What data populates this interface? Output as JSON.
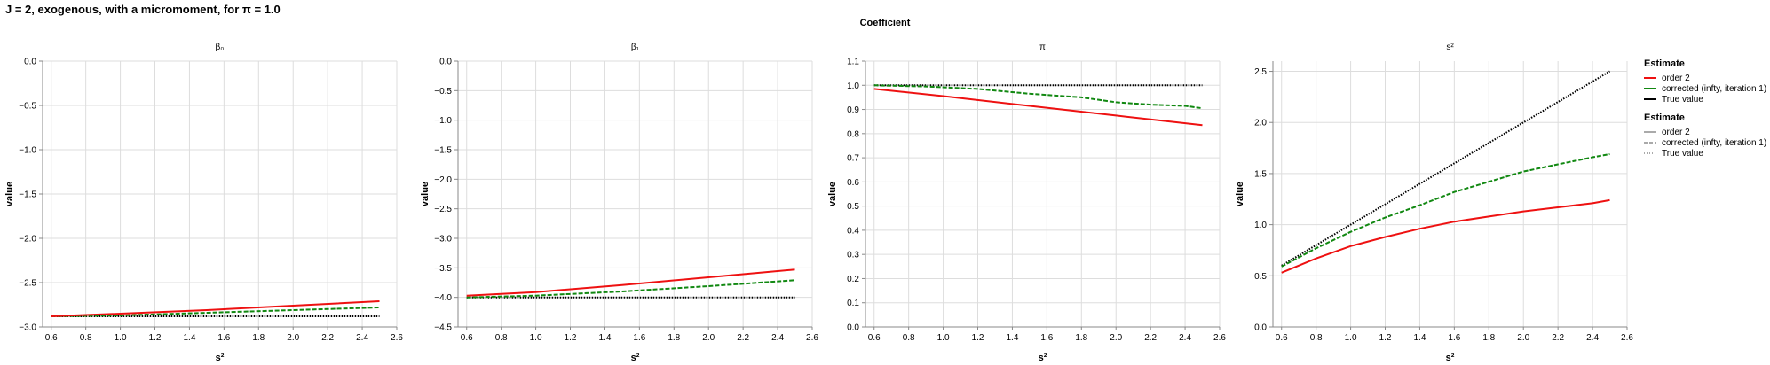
{
  "main_title": "J = 2, exogenous, with a micromoment,  for π = 1.0",
  "facet_title": "Coefficient",
  "legend": [
    {
      "title": "Estimate",
      "kind": "color",
      "items": [
        {
          "label": "order 2",
          "color": "#ee1111"
        },
        {
          "label": "corrected (infty, iteration 1)",
          "color": "#118811"
        },
        {
          "label": "True value",
          "color": "#000000"
        }
      ]
    },
    {
      "title": "Estimate",
      "kind": "dash",
      "items": [
        {
          "label": "order 2",
          "dash": "solid"
        },
        {
          "label": "corrected (infty, iteration 1)",
          "dash": "dashed"
        },
        {
          "label": "True value",
          "dash": "dotted"
        }
      ]
    }
  ],
  "colors": {
    "order2": "#ee1111",
    "corrected": "#118811",
    "true": "#000000",
    "grid": "#dddddd",
    "axis": "#888888"
  },
  "chart_data": [
    {
      "type": "line",
      "title": "β₀",
      "xlabel": "s²",
      "ylabel": "value",
      "xlim": [
        0.55,
        2.6
      ],
      "ylim": [
        -3.0,
        0.0
      ],
      "xticks": [
        0.6,
        0.8,
        1.0,
        1.2,
        1.4,
        1.6,
        1.8,
        2.0,
        2.2,
        2.4,
        2.6
      ],
      "xtick_labels": [
        "0.6",
        "0.8",
        "1.0",
        "1.2",
        "1.4",
        "1.6",
        "1.8",
        "2.0",
        "2.2",
        "2.4",
        "2.6"
      ],
      "yticks": [
        0.0,
        -0.5,
        -1.0,
        -1.5,
        -2.0,
        -2.5,
        -3.0
      ],
      "ytick_labels": [
        "0.0",
        "−0.5",
        "−1.0",
        "−1.5",
        "−2.0",
        "−2.5",
        "−3.0"
      ],
      "grid": true,
      "series": [
        {
          "name": "order 2",
          "style": "solid",
          "x": [
            0.6,
            1.0,
            1.5,
            2.0,
            2.5
          ],
          "y": [
            -2.88,
            -2.85,
            -2.81,
            -2.76,
            -2.71
          ]
        },
        {
          "name": "corrected (infty, iteration 1)",
          "style": "dashed",
          "x": [
            0.6,
            1.0,
            1.5,
            2.0,
            2.5
          ],
          "y": [
            -2.88,
            -2.87,
            -2.84,
            -2.81,
            -2.78
          ]
        },
        {
          "name": "True value",
          "style": "dotted",
          "x": [
            0.6,
            2.5
          ],
          "y": [
            -2.88,
            -2.88
          ]
        }
      ]
    },
    {
      "type": "line",
      "title": "β₁",
      "xlabel": "s²",
      "ylabel": "value",
      "xlim": [
        0.55,
        2.6
      ],
      "ylim": [
        -4.5,
        0.0
      ],
      "xticks": [
        0.6,
        0.8,
        1.0,
        1.2,
        1.4,
        1.6,
        1.8,
        2.0,
        2.2,
        2.4,
        2.6
      ],
      "xtick_labels": [
        "0.6",
        "0.8",
        "1.0",
        "1.2",
        "1.4",
        "1.6",
        "1.8",
        "2.0",
        "2.2",
        "2.4",
        "2.6"
      ],
      "yticks": [
        0.0,
        -0.5,
        -1.0,
        -1.5,
        -2.0,
        -2.5,
        -3.0,
        -3.5,
        -4.0,
        -4.5
      ],
      "ytick_labels": [
        "0.0",
        "−0.5",
        "−1.0",
        "−1.5",
        "−2.0",
        "−2.5",
        "−3.0",
        "−3.5",
        "−4.0",
        "−4.5"
      ],
      "grid": true,
      "series": [
        {
          "name": "order 2",
          "style": "solid",
          "x": [
            0.6,
            1.0,
            1.5,
            2.0,
            2.5
          ],
          "y": [
            -3.97,
            -3.91,
            -3.79,
            -3.66,
            -3.53
          ]
        },
        {
          "name": "corrected (infty, iteration 1)",
          "style": "dashed",
          "x": [
            0.6,
            1.0,
            1.5,
            2.0,
            2.5
          ],
          "y": [
            -4.0,
            -3.97,
            -3.9,
            -3.81,
            -3.71
          ]
        },
        {
          "name": "True value",
          "style": "dotted",
          "x": [
            0.6,
            2.5
          ],
          "y": [
            -4.0,
            -4.0
          ]
        }
      ]
    },
    {
      "type": "line",
      "title": "π",
      "xlabel": "s²",
      "ylabel": "value",
      "xlim": [
        0.55,
        2.6
      ],
      "ylim": [
        0.0,
        1.1
      ],
      "xticks": [
        0.6,
        0.8,
        1.0,
        1.2,
        1.4,
        1.6,
        1.8,
        2.0,
        2.2,
        2.4,
        2.6
      ],
      "xtick_labels": [
        "0.6",
        "0.8",
        "1.0",
        "1.2",
        "1.4",
        "1.6",
        "1.8",
        "2.0",
        "2.2",
        "2.4",
        "2.6"
      ],
      "yticks": [
        0.0,
        0.1,
        0.2,
        0.3,
        0.4,
        0.5,
        0.6,
        0.7,
        0.8,
        0.9,
        1.0,
        1.1
      ],
      "ytick_labels": [
        "0.0",
        "0.1",
        "0.2",
        "0.3",
        "0.4",
        "0.5",
        "0.6",
        "0.7",
        "0.8",
        "0.9",
        "1.0",
        "1.1"
      ],
      "grid": true,
      "series": [
        {
          "name": "order 2",
          "style": "solid",
          "x": [
            0.6,
            1.0,
            1.5,
            2.0,
            2.5
          ],
          "y": [
            0.985,
            0.955,
            0.915,
            0.875,
            0.835
          ]
        },
        {
          "name": "corrected (infty, iteration 1)",
          "style": "dashed",
          "x": [
            0.6,
            0.9,
            1.2,
            1.5,
            1.8,
            2.0,
            2.2,
            2.4,
            2.5
          ],
          "y": [
            1.0,
            0.995,
            0.985,
            0.965,
            0.95,
            0.93,
            0.92,
            0.915,
            0.905
          ]
        },
        {
          "name": "True value",
          "style": "dotted",
          "x": [
            0.6,
            2.5
          ],
          "y": [
            1.0,
            1.0
          ]
        }
      ]
    },
    {
      "type": "line",
      "title": "s²",
      "xlabel": "s²",
      "ylabel": "value",
      "xlim": [
        0.55,
        2.6
      ],
      "ylim": [
        0.0,
        2.6
      ],
      "xticks": [
        0.6,
        0.8,
        1.0,
        1.2,
        1.4,
        1.6,
        1.8,
        2.0,
        2.2,
        2.4,
        2.6
      ],
      "xtick_labels": [
        "0.6",
        "0.8",
        "1.0",
        "1.2",
        "1.4",
        "1.6",
        "1.8",
        "2.0",
        "2.2",
        "2.4",
        "2.6"
      ],
      "yticks": [
        0.0,
        0.5,
        1.0,
        1.5,
        2.0,
        2.5
      ],
      "ytick_labels": [
        "0.0",
        "0.5",
        "1.0",
        "1.5",
        "2.0",
        "2.5"
      ],
      "grid": true,
      "series": [
        {
          "name": "order 2",
          "style": "solid",
          "x": [
            0.6,
            0.8,
            1.0,
            1.2,
            1.4,
            1.6,
            1.8,
            2.0,
            2.2,
            2.4,
            2.5
          ],
          "y": [
            0.53,
            0.67,
            0.79,
            0.88,
            0.96,
            1.03,
            1.08,
            1.13,
            1.17,
            1.21,
            1.24
          ]
        },
        {
          "name": "corrected (infty, iteration 1)",
          "style": "dashed",
          "x": [
            0.6,
            0.8,
            1.0,
            1.2,
            1.4,
            1.6,
            1.8,
            2.0,
            2.2,
            2.4,
            2.5
          ],
          "y": [
            0.59,
            0.77,
            0.93,
            1.07,
            1.19,
            1.32,
            1.42,
            1.52,
            1.59,
            1.66,
            1.69
          ]
        },
        {
          "name": "True value",
          "style": "dotted",
          "x": [
            0.6,
            2.5
          ],
          "y": [
            0.6,
            2.5
          ]
        }
      ]
    }
  ]
}
